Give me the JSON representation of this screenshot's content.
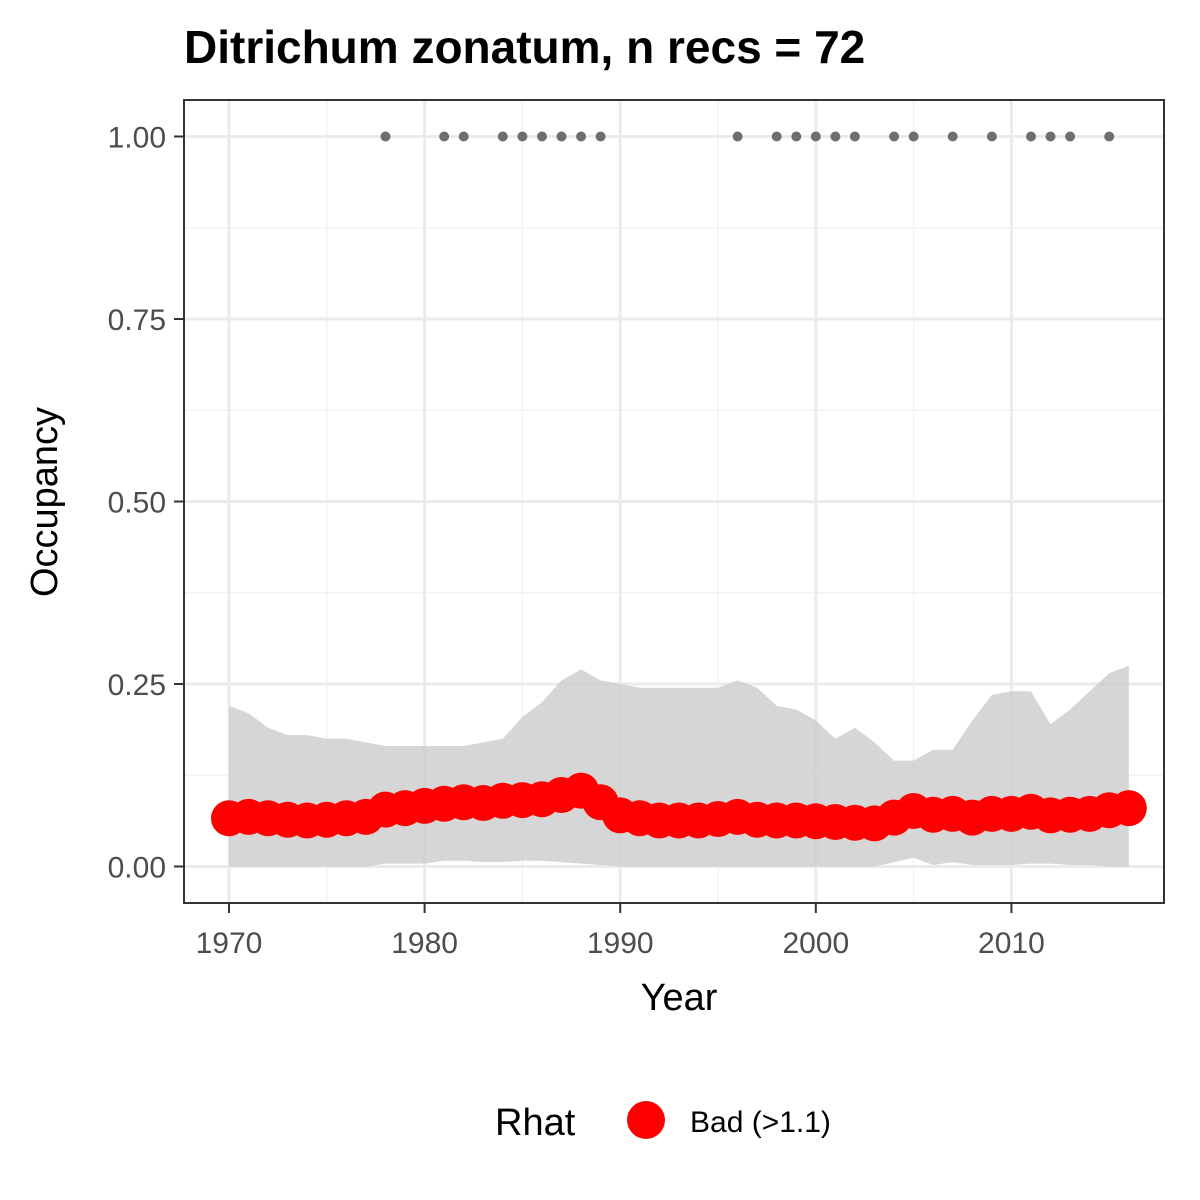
{
  "chart_data": {
    "type": "line",
    "title": "Ditrichum zonatum, n recs = 72",
    "xlabel": "Year",
    "ylabel": "Occupancy",
    "xlim": [
      1967.7,
      2017.8
    ],
    "ylim": [
      -0.05,
      1.05
    ],
    "x_ticks": [
      1970,
      1980,
      1990,
      2000,
      2010
    ],
    "x_tick_labels": [
      "1970",
      "1980",
      "1990",
      "2000",
      "2010"
    ],
    "y_ticks": [
      0,
      0.25,
      0.5,
      0.75,
      1.0
    ],
    "y_tick_labels": [
      "0.00",
      "0.25",
      "0.50",
      "0.75",
      "1.00"
    ],
    "grid": true,
    "series": [
      {
        "role": "mean-occupancy",
        "color": "#ff0000",
        "x": [
          1970,
          1971,
          1972,
          1973,
          1974,
          1975,
          1976,
          1977,
          1978,
          1979,
          1980,
          1981,
          1982,
          1983,
          1984,
          1985,
          1986,
          1987,
          1988,
          1989,
          1990,
          1991,
          1992,
          1993,
          1994,
          1995,
          1996,
          1997,
          1998,
          1999,
          2000,
          2001,
          2002,
          2003,
          2004,
          2005,
          2006,
          2007,
          2008,
          2009,
          2010,
          2011,
          2012,
          2013,
          2014,
          2015,
          2016
        ],
        "y": [
          0.066,
          0.068,
          0.066,
          0.064,
          0.063,
          0.064,
          0.066,
          0.068,
          0.078,
          0.08,
          0.083,
          0.086,
          0.088,
          0.087,
          0.09,
          0.091,
          0.092,
          0.098,
          0.104,
          0.088,
          0.07,
          0.066,
          0.063,
          0.063,
          0.063,
          0.065,
          0.068,
          0.064,
          0.063,
          0.063,
          0.062,
          0.061,
          0.06,
          0.059,
          0.067,
          0.076,
          0.071,
          0.072,
          0.067,
          0.072,
          0.072,
          0.075,
          0.07,
          0.071,
          0.072,
          0.077,
          0.08
        ]
      },
      {
        "role": "credible-interval",
        "color": "#d6d6d6",
        "x": [
          1970,
          1971,
          1972,
          1973,
          1974,
          1975,
          1976,
          1977,
          1978,
          1979,
          1980,
          1981,
          1982,
          1983,
          1984,
          1985,
          1986,
          1987,
          1988,
          1989,
          1990,
          1991,
          1992,
          1993,
          1994,
          1995,
          1996,
          1997,
          1998,
          1999,
          2000,
          2001,
          2002,
          2003,
          2004,
          2005,
          2006,
          2007,
          2008,
          2009,
          2010,
          2011,
          2012,
          2013,
          2014,
          2015,
          2016
        ],
        "lower": [
          0,
          0,
          0,
          0,
          0,
          0,
          0,
          0,
          0.004,
          0.004,
          0.004,
          0.008,
          0.008,
          0.006,
          0.006,
          0.008,
          0.008,
          0.006,
          0.004,
          0.002,
          0,
          0,
          0,
          0,
          0,
          0,
          0,
          0,
          0,
          0,
          0,
          0,
          0,
          0,
          0.006,
          0.012,
          0.002,
          0.006,
          0.002,
          0.002,
          0.002,
          0.004,
          0.004,
          0.002,
          0.002,
          0,
          0
        ],
        "upper": [
          0.22,
          0.21,
          0.19,
          0.18,
          0.18,
          0.175,
          0.175,
          0.17,
          0.165,
          0.165,
          0.165,
          0.165,
          0.165,
          0.17,
          0.175,
          0.205,
          0.225,
          0.255,
          0.27,
          0.255,
          0.25,
          0.245,
          0.245,
          0.245,
          0.245,
          0.245,
          0.255,
          0.245,
          0.22,
          0.215,
          0.2,
          0.175,
          0.19,
          0.17,
          0.145,
          0.145,
          0.16,
          0.16,
          0.2,
          0.235,
          0.24,
          0.24,
          0.195,
          0.215,
          0.24,
          0.265,
          0.275
        ]
      },
      {
        "role": "records",
        "color": "#6e6e6e",
        "x": [
          1978,
          1981,
          1982,
          1984,
          1985,
          1986,
          1987,
          1988,
          1989,
          1996,
          1998,
          1999,
          2000,
          2001,
          2002,
          2004,
          2005,
          2007,
          2009,
          2011,
          2012,
          2013,
          2015
        ],
        "y": [
          1,
          1,
          1,
          1,
          1,
          1,
          1,
          1,
          1,
          1,
          1,
          1,
          1,
          1,
          1,
          1,
          1,
          1,
          1,
          1,
          1,
          1,
          1
        ]
      }
    ],
    "legend": {
      "position": "bottom",
      "title": "Rhat",
      "entries": [
        {
          "label": "Bad (>1.1)",
          "color": "#ff0000"
        }
      ]
    }
  }
}
